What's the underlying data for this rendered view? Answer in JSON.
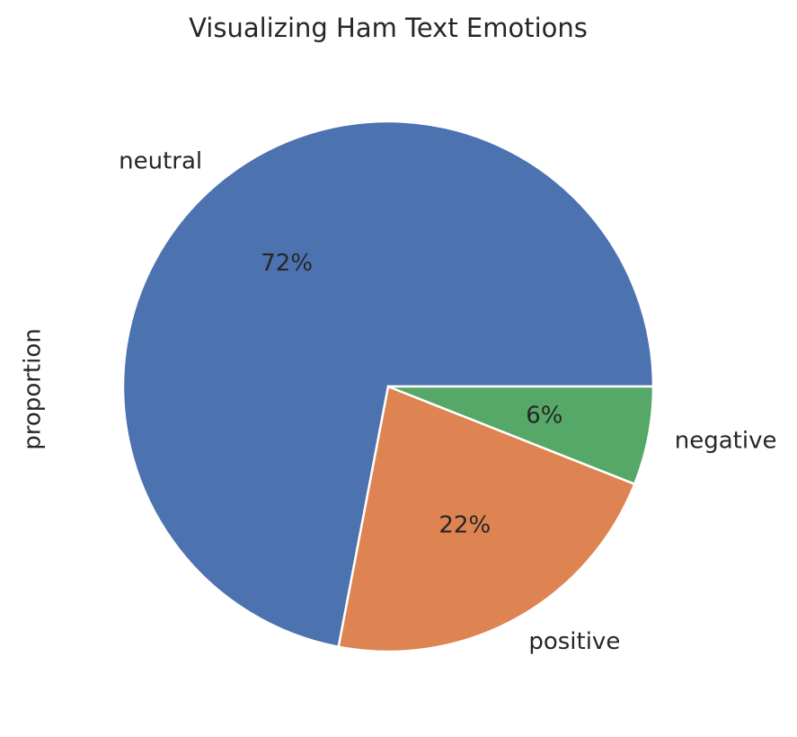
{
  "chart_data": {
    "type": "pie",
    "title": "Visualizing Ham Text Emotions",
    "ylabel": "proportion",
    "categories": [
      "neutral",
      "positive",
      "negative"
    ],
    "values": [
      72,
      22,
      6
    ],
    "value_labels": [
      "72%",
      "22%",
      "6%"
    ],
    "colors": [
      "#4c72b0",
      "#dd8452",
      "#55a868"
    ]
  }
}
